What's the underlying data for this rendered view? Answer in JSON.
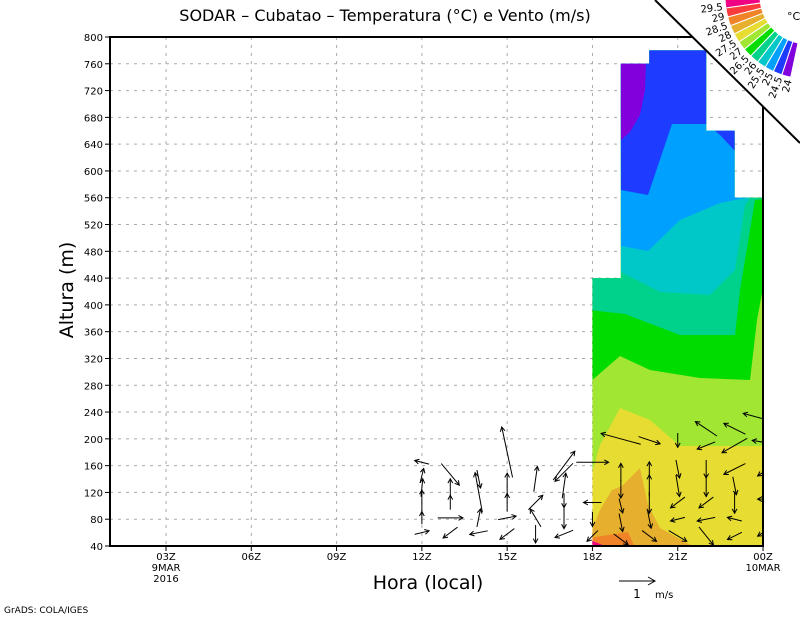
{
  "chart_data": {
    "type": "heatmap",
    "title": "SODAR – Cubatao – Temperatura (°C) e Vento (m/s)",
    "xlabel": "Hora (local)",
    "ylabel": "Altura (m)",
    "x_ticks": [
      {
        "hour": 3,
        "label": "03Z",
        "sub1": "9MAR",
        "sub2": "2016"
      },
      {
        "hour": 6,
        "label": "06Z"
      },
      {
        "hour": 9,
        "label": "09Z"
      },
      {
        "hour": 12,
        "label": "12Z"
      },
      {
        "hour": 15,
        "label": "15Z"
      },
      {
        "hour": 18,
        "label": "18Z"
      },
      {
        "hour": 21,
        "label": "21Z"
      },
      {
        "hour": 24,
        "label": "00Z",
        "sub1": "10MAR"
      }
    ],
    "xlim_hours": [
      1,
      24
    ],
    "ylim": [
      40,
      800
    ],
    "y_ticks": [
      40,
      80,
      120,
      160,
      200,
      240,
      280,
      320,
      360,
      400,
      440,
      480,
      520,
      560,
      600,
      640,
      680,
      720,
      760,
      800
    ],
    "grid": true,
    "data_coverage_top_m": [
      {
        "from": 18,
        "to": 19,
        "top": 440
      },
      {
        "from": 19,
        "to": 20,
        "top": 760
      },
      {
        "from": 20,
        "to": 22,
        "top": 780
      },
      {
        "from": 22,
        "to": 23,
        "top": 660
      },
      {
        "from": 23,
        "to": 24,
        "top": 560
      }
    ],
    "colorbar": {
      "unit": "°C",
      "levels": [
        "29.5",
        "29",
        "28.5",
        "28",
        "27.5",
        "27",
        "26.5",
        "26",
        "25.5",
        "25",
        "24.5",
        "24"
      ],
      "colors": [
        "#f00082",
        "#fa3c3c",
        "#f08228",
        "#e6af2d",
        "#e6dc32",
        "#a0e632",
        "#00dc00",
        "#00d28c",
        "#00c8c8",
        "#00a0ff",
        "#1e3cff",
        "#8200dc"
      ],
      "placement": "top-right"
    },
    "wind_reference": {
      "value": "1",
      "unit": "m/s"
    },
    "wind_vectors": [
      [
        12,
        60,
        0.4,
        0.1
      ],
      [
        12,
        82,
        0,
        0.35
      ],
      [
        12,
        105,
        0,
        0.7
      ],
      [
        12,
        127,
        0.05,
        0.5
      ],
      [
        12,
        145,
        0.1,
        0.4
      ],
      [
        12,
        165,
        -0.4,
        0.1
      ],
      [
        13,
        60,
        -0.4,
        -0.3
      ],
      [
        13,
        82,
        0.7,
        0
      ],
      [
        13,
        105,
        0,
        0.4
      ],
      [
        13,
        127,
        0,
        0.5
      ],
      [
        13,
        147,
        0.5,
        -0.6
      ],
      [
        14,
        60,
        -0.5,
        -0.1
      ],
      [
        14,
        82,
        0.1,
        0.5
      ],
      [
        14,
        120,
        -0.2,
        1.1
      ],
      [
        14,
        140,
        0.1,
        -0.5
      ],
      [
        15,
        58,
        -0.4,
        -0.3
      ],
      [
        15,
        82,
        0.5,
        0.1
      ],
      [
        15,
        105,
        0,
        0.5
      ],
      [
        15,
        130,
        0,
        0.7
      ],
      [
        15,
        180,
        -0.3,
        1.4
      ],
      [
        16,
        58,
        0,
        -0.5
      ],
      [
        16,
        82,
        -0.3,
        0.5
      ],
      [
        16,
        105,
        0.4,
        0.4
      ],
      [
        16,
        140,
        0.1,
        0.7
      ],
      [
        17,
        58,
        -0.5,
        -0.2
      ],
      [
        17,
        82,
        0,
        -0.6
      ],
      [
        17,
        108,
        0,
        -0.4
      ],
      [
        17,
        130,
        0.1,
        0.7
      ],
      [
        17,
        160,
        0.6,
        0.8
      ],
      [
        17,
        150,
        -0.5,
        -0.5
      ],
      [
        18,
        55,
        -0.3,
        -0.3
      ],
      [
        18,
        80,
        0,
        -0.4
      ],
      [
        18,
        105,
        -0.5,
        0
      ],
      [
        18,
        165,
        0.9,
        0
      ],
      [
        19,
        50,
        0.4,
        -0.3
      ],
      [
        19,
        75,
        0.1,
        -0.5
      ],
      [
        19,
        100,
        0.1,
        -0.4
      ],
      [
        19,
        125,
        0,
        -0.5
      ],
      [
        19,
        150,
        0,
        0.5
      ],
      [
        19,
        200,
        -1.1,
        0.3
      ],
      [
        20,
        55,
        0.4,
        -0.3
      ],
      [
        20,
        80,
        0.1,
        -0.5
      ],
      [
        20,
        105,
        0,
        -0.6
      ],
      [
        20,
        130,
        0,
        0.6
      ],
      [
        20,
        155,
        0,
        0.4
      ],
      [
        20,
        198,
        0.6,
        -0.2
      ],
      [
        21,
        55,
        0.5,
        -0.3
      ],
      [
        21,
        80,
        -0.4,
        -0.1
      ],
      [
        21,
        105,
        -0.4,
        -0.3
      ],
      [
        21,
        130,
        0.1,
        -0.6
      ],
      [
        21,
        155,
        0.1,
        -0.5
      ],
      [
        21,
        198,
        0,
        -0.4
      ],
      [
        22,
        55,
        0.4,
        -0.5
      ],
      [
        22,
        80,
        -0.5,
        -0.1
      ],
      [
        22,
        105,
        -0.4,
        -0.3
      ],
      [
        22,
        130,
        0,
        -0.6
      ],
      [
        22,
        155,
        0,
        -0.5
      ],
      [
        22,
        190,
        -0.5,
        -0.2
      ],
      [
        22,
        215,
        -0.6,
        0.4
      ],
      [
        23,
        55,
        -0.4,
        -0.2
      ],
      [
        23,
        80,
        -0.4,
        0.1
      ],
      [
        23,
        105,
        0,
        -0.6
      ],
      [
        23,
        130,
        0.1,
        -0.5
      ],
      [
        23,
        155,
        -0.6,
        -0.3
      ],
      [
        23,
        190,
        -0.7,
        -0.4
      ],
      [
        23,
        215,
        -0.6,
        0.3
      ],
      [
        24,
        60,
        -0.3,
        -0.2
      ],
      [
        24,
        110,
        -0.3,
        0
      ],
      [
        24,
        150,
        -0.3,
        -0.2
      ],
      [
        24,
        195,
        -0.6,
        0.1
      ],
      [
        24,
        230,
        -1.1,
        0.3
      ]
    ]
  },
  "footer": {
    "credit": "GrADS: COLA/IGES"
  }
}
